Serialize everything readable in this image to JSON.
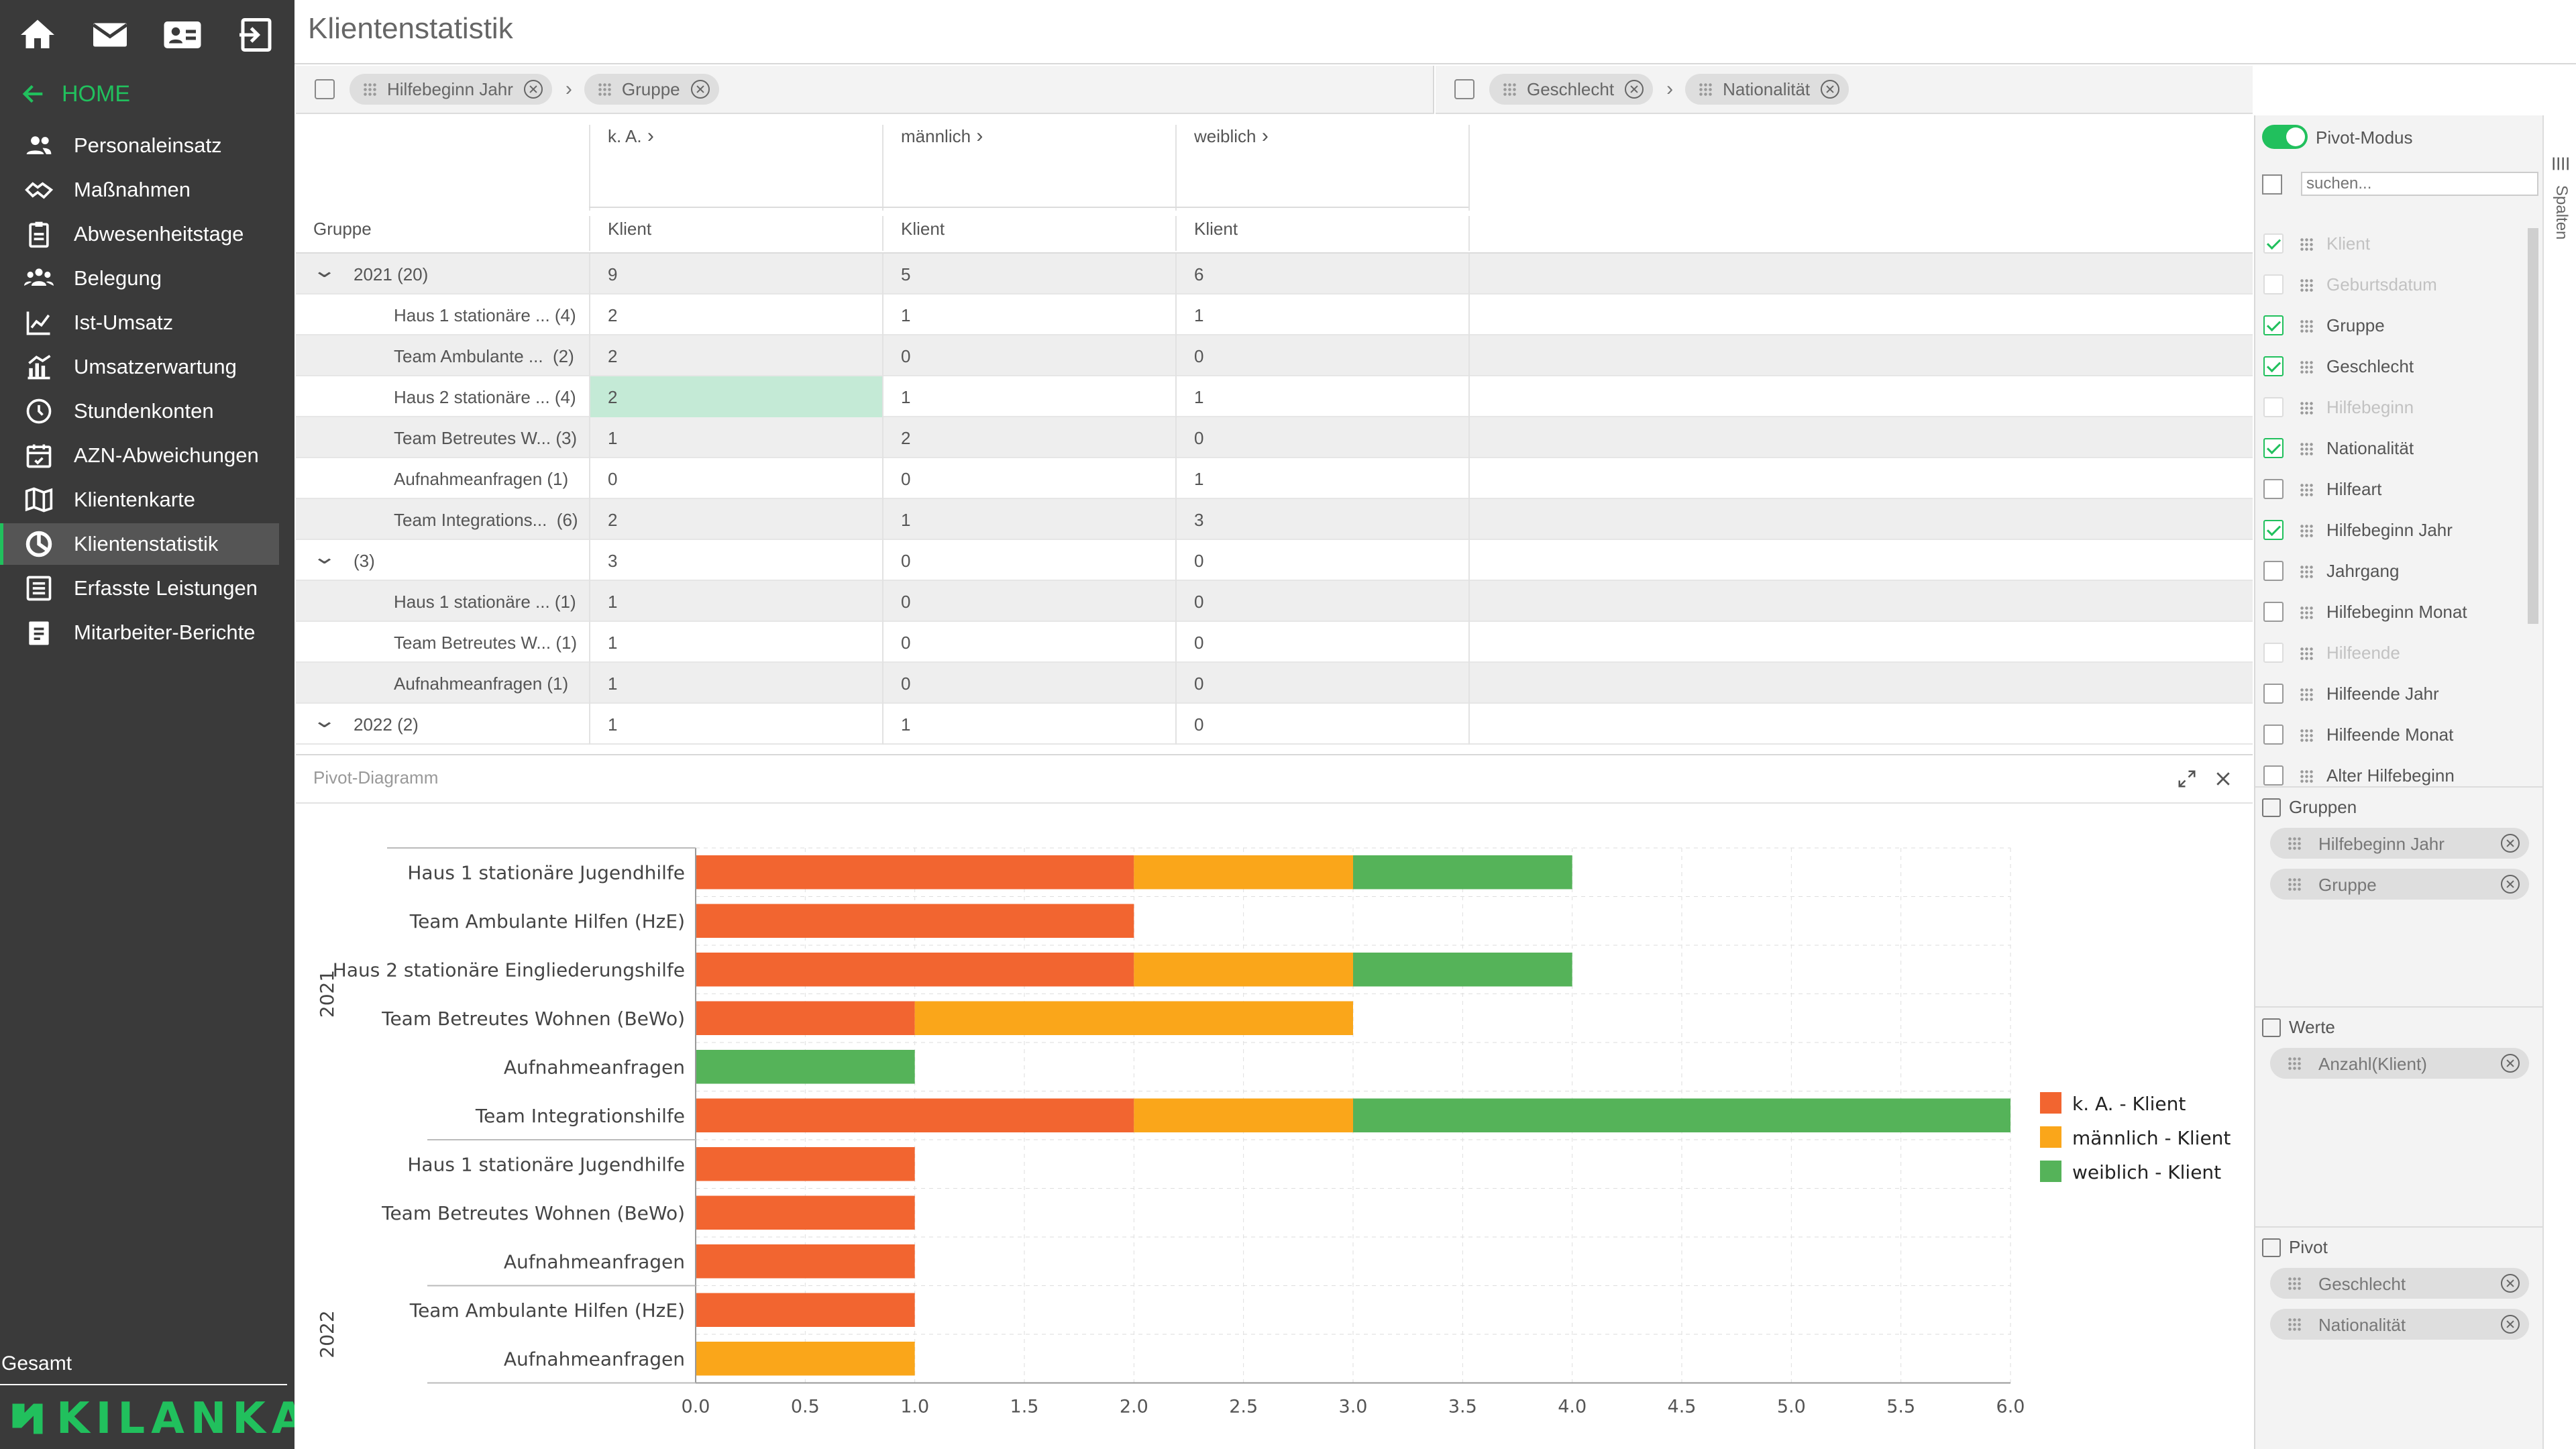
{
  "app": {
    "title": "Klientenstatistik",
    "home": "HOME",
    "footer_label": "Gesamt",
    "brand": "KILANKA",
    "accent": "#21c05d"
  },
  "sidebar": {
    "items": [
      {
        "label": "Personaleinsatz",
        "icon": "people-icon"
      },
      {
        "label": "Maßnahmen",
        "icon": "handshake-icon"
      },
      {
        "label": "Abwesenheitstage",
        "icon": "clipboard-icon"
      },
      {
        "label": "Belegung",
        "icon": "group-icon"
      },
      {
        "label": "Ist-Umsatz",
        "icon": "line-chart-icon"
      },
      {
        "label": "Umsatzerwartung",
        "icon": "chart-trend-icon"
      },
      {
        "label": "Stundenkonten",
        "icon": "clock-icon"
      },
      {
        "label": "AZN-Abweichungen",
        "icon": "calendar-icon"
      },
      {
        "label": "Klientenkarte",
        "icon": "map-icon"
      },
      {
        "label": "Klientenstatistik",
        "icon": "pie-chart-icon",
        "active": true
      },
      {
        "label": "Erfasste Leistungen",
        "icon": "list-icon"
      },
      {
        "label": "Mitarbeiter-Berichte",
        "icon": "report-icon"
      }
    ]
  },
  "row_zone": {
    "chips": [
      "Hilfebeginn Jahr",
      "Gruppe"
    ]
  },
  "col_zone": {
    "chips": [
      "Geschlecht",
      "Nationalität"
    ]
  },
  "table": {
    "column_groups": [
      "k. A.",
      "männlich",
      "weiblich"
    ],
    "header": [
      "Gruppe",
      "Klient",
      "Klient",
      "Klient"
    ],
    "rows": [
      {
        "label": "2021 (20)",
        "level": 0,
        "values": [
          "9",
          "5",
          "6"
        ]
      },
      {
        "label": "Haus 1 stationäre ... (4)",
        "level": 1,
        "values": [
          "2",
          "1",
          "1"
        ]
      },
      {
        "label": "Team Ambulante ...  (2)",
        "level": 1,
        "values": [
          "2",
          "0",
          "0"
        ]
      },
      {
        "label": "Haus 2 stationäre ... (4)",
        "level": 1,
        "values": [
          "2",
          "1",
          "1"
        ],
        "highlight": true
      },
      {
        "label": "Team Betreutes W... (3)",
        "level": 1,
        "values": [
          "1",
          "2",
          "0"
        ]
      },
      {
        "label": "Aufnahmeanfragen (1)",
        "level": 1,
        "values": [
          "0",
          "0",
          "1"
        ]
      },
      {
        "label": "Team Integrations...  (6)",
        "level": 1,
        "values": [
          "2",
          "1",
          "3"
        ]
      },
      {
        "label": "(3)",
        "level": 0,
        "values": [
          "3",
          "0",
          "0"
        ]
      },
      {
        "label": "Haus 1 stationäre ... (1)",
        "level": 1,
        "values": [
          "1",
          "0",
          "0"
        ]
      },
      {
        "label": "Team Betreutes W... (1)",
        "level": 1,
        "values": [
          "1",
          "0",
          "0"
        ]
      },
      {
        "label": "Aufnahmeanfragen (1)",
        "level": 1,
        "values": [
          "1",
          "0",
          "0"
        ]
      },
      {
        "label": "2022 (2)",
        "level": 0,
        "values": [
          "1",
          "1",
          "0"
        ]
      }
    ]
  },
  "chart_panel": {
    "title": "Pivot-Diagramm"
  },
  "chart_data": {
    "type": "bar",
    "orientation": "horizontal",
    "stacked": true,
    "categories": [
      "Haus 1 stationäre Jugendhilfe",
      "Team Ambulante Hilfen (HzE)",
      "Haus 2 stationäre Eingliederungshilfe",
      "Team Betreutes Wohnen (BeWo)",
      "Aufnahmeanfragen",
      "Team Integrationshilfe",
      "Haus 1 stationäre Jugendhilfe",
      "Team Betreutes Wohnen (BeWo)",
      "Aufnahmeanfragen",
      "Team Ambulante Hilfen (HzE)",
      "Aufnahmeanfragen"
    ],
    "groups": [
      {
        "label": "2021",
        "from": 0,
        "to": 5
      },
      {
        "label": "",
        "from": 6,
        "to": 8
      },
      {
        "label": "2022",
        "from": 9,
        "to": 10
      }
    ],
    "series": [
      {
        "name": "k. A. - Klient",
        "color": "#f26530",
        "values": [
          2,
          2,
          2,
          1,
          0,
          2,
          1,
          1,
          1,
          1,
          0
        ]
      },
      {
        "name": "männlich - Klient",
        "color": "#faa61a",
        "values": [
          1,
          0,
          1,
          2,
          0,
          1,
          0,
          0,
          0,
          0,
          1
        ]
      },
      {
        "name": "weiblich - Klient",
        "color": "#55b359",
        "values": [
          1,
          0,
          1,
          0,
          1,
          3,
          0,
          0,
          0,
          0,
          0
        ]
      }
    ],
    "xlim": [
      0,
      6
    ],
    "xticks": [
      "0.0",
      "0.5",
      "1.0",
      "1.5",
      "2.0",
      "2.5",
      "3.0",
      "3.5",
      "4.0",
      "4.5",
      "5.0",
      "5.5",
      "6.0"
    ],
    "grid": true,
    "legend": "right"
  },
  "right_panel": {
    "pivot_mode": "Pivot-Modus",
    "search_placeholder": "suchen...",
    "fields": [
      {
        "label": "Klient",
        "checked": true,
        "disabled": true
      },
      {
        "label": "Geburtsdatum",
        "checked": false,
        "disabled": true
      },
      {
        "label": "Gruppe",
        "checked": true,
        "disabled": false
      },
      {
        "label": "Geschlecht",
        "checked": true,
        "disabled": false
      },
      {
        "label": "Hilfebeginn",
        "checked": false,
        "disabled": true
      },
      {
        "label": "Nationalität",
        "checked": true,
        "disabled": false
      },
      {
        "label": "Hilfeart",
        "checked": false,
        "disabled": false
      },
      {
        "label": "Hilfebeginn Jahr",
        "checked": true,
        "disabled": false
      },
      {
        "label": "Jahrgang",
        "checked": false,
        "disabled": false
      },
      {
        "label": "Hilfebeginn Monat",
        "checked": false,
        "disabled": false
      },
      {
        "label": "Hilfeende",
        "checked": false,
        "disabled": true
      },
      {
        "label": "Hilfeende Jahr",
        "checked": false,
        "disabled": false
      },
      {
        "label": "Hilfeende Monat",
        "checked": false,
        "disabled": false
      },
      {
        "label": "Alter Hilfebeginn",
        "checked": false,
        "disabled": false
      }
    ],
    "sections": [
      {
        "title": "Gruppen",
        "chips": [
          "Hilfebeginn Jahr",
          "Gruppe"
        ]
      },
      {
        "title": "Werte",
        "chips": [
          "Anzahl(Klient)"
        ]
      },
      {
        "title": "Pivot",
        "chips": [
          "Geschlecht",
          "Nationalität"
        ]
      }
    ],
    "side_tab": "Spalten"
  }
}
